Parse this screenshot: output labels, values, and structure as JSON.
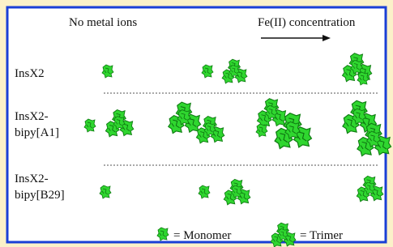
{
  "header": {
    "left": "No metal ions",
    "right": "Fe(II) concentration"
  },
  "rows": [
    {
      "label_lines": [
        "InsX2"
      ]
    },
    {
      "label_lines": [
        "InsX2-",
        "bipy[A1]"
      ]
    },
    {
      "label_lines": [
        "InsX2-",
        "bipy[B29]"
      ]
    }
  ],
  "legend": {
    "monomer": "= Monomer",
    "trimer": "= Trimer"
  }
}
